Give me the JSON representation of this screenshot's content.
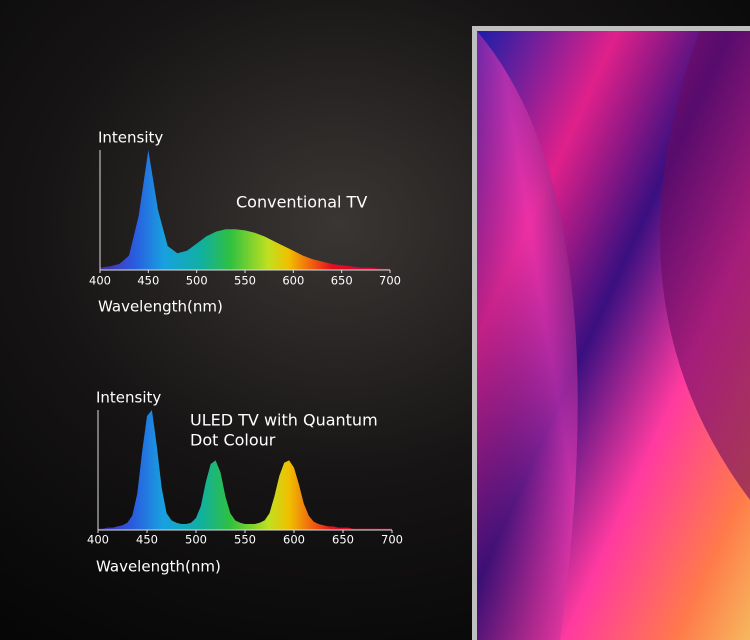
{
  "chart_data": [
    {
      "type": "area",
      "y_label": "Intensity",
      "x_label": "Wavelength(nm)",
      "annotation": "Conventional TV",
      "xlim": [
        400,
        700
      ],
      "ylim": [
        0,
        100
      ],
      "xticks": [
        400,
        450,
        500,
        550,
        600,
        650,
        700
      ],
      "x": [
        400,
        410,
        420,
        430,
        440,
        450,
        460,
        470,
        480,
        490,
        500,
        510,
        520,
        530,
        540,
        550,
        560,
        570,
        580,
        590,
        600,
        610,
        620,
        630,
        640,
        650,
        660,
        670,
        680,
        690,
        700
      ],
      "values": [
        2,
        3,
        5,
        12,
        45,
        100,
        50,
        20,
        14,
        16,
        22,
        28,
        32,
        34,
        34,
        33,
        31,
        28,
        24,
        20,
        16,
        12,
        9,
        7,
        5,
        4,
        3,
        2,
        2,
        1,
        1
      ]
    },
    {
      "type": "area",
      "y_label": "Intensity",
      "x_label": "Wavelength(nm)",
      "annotation_lines": [
        "ULED TV with Quantum",
        "Dot Colour"
      ],
      "xlim": [
        400,
        700
      ],
      "ylim": [
        0,
        100
      ],
      "xticks": [
        400,
        450,
        500,
        550,
        600,
        650,
        700
      ],
      "x": [
        400,
        405,
        410,
        415,
        420,
        425,
        430,
        435,
        440,
        445,
        450,
        455,
        460,
        465,
        470,
        475,
        480,
        485,
        490,
        495,
        500,
        505,
        510,
        515,
        520,
        525,
        530,
        535,
        540,
        545,
        550,
        555,
        560,
        565,
        570,
        575,
        580,
        585,
        590,
        595,
        600,
        605,
        610,
        615,
        620,
        625,
        630,
        635,
        640,
        645,
        650,
        655,
        660,
        665,
        670,
        675,
        680,
        685,
        690,
        695,
        700
      ],
      "values": [
        1,
        1,
        2,
        2,
        3,
        4,
        6,
        12,
        30,
        65,
        95,
        100,
        70,
        35,
        14,
        8,
        6,
        5,
        5,
        6,
        10,
        20,
        40,
        55,
        58,
        48,
        28,
        14,
        8,
        6,
        5,
        5,
        5,
        6,
        8,
        14,
        28,
        45,
        56,
        58,
        52,
        38,
        22,
        12,
        7,
        5,
        4,
        3,
        3,
        2,
        2,
        2,
        1,
        1,
        1,
        1,
        1,
        1,
        1,
        1,
        1
      ]
    }
  ]
}
